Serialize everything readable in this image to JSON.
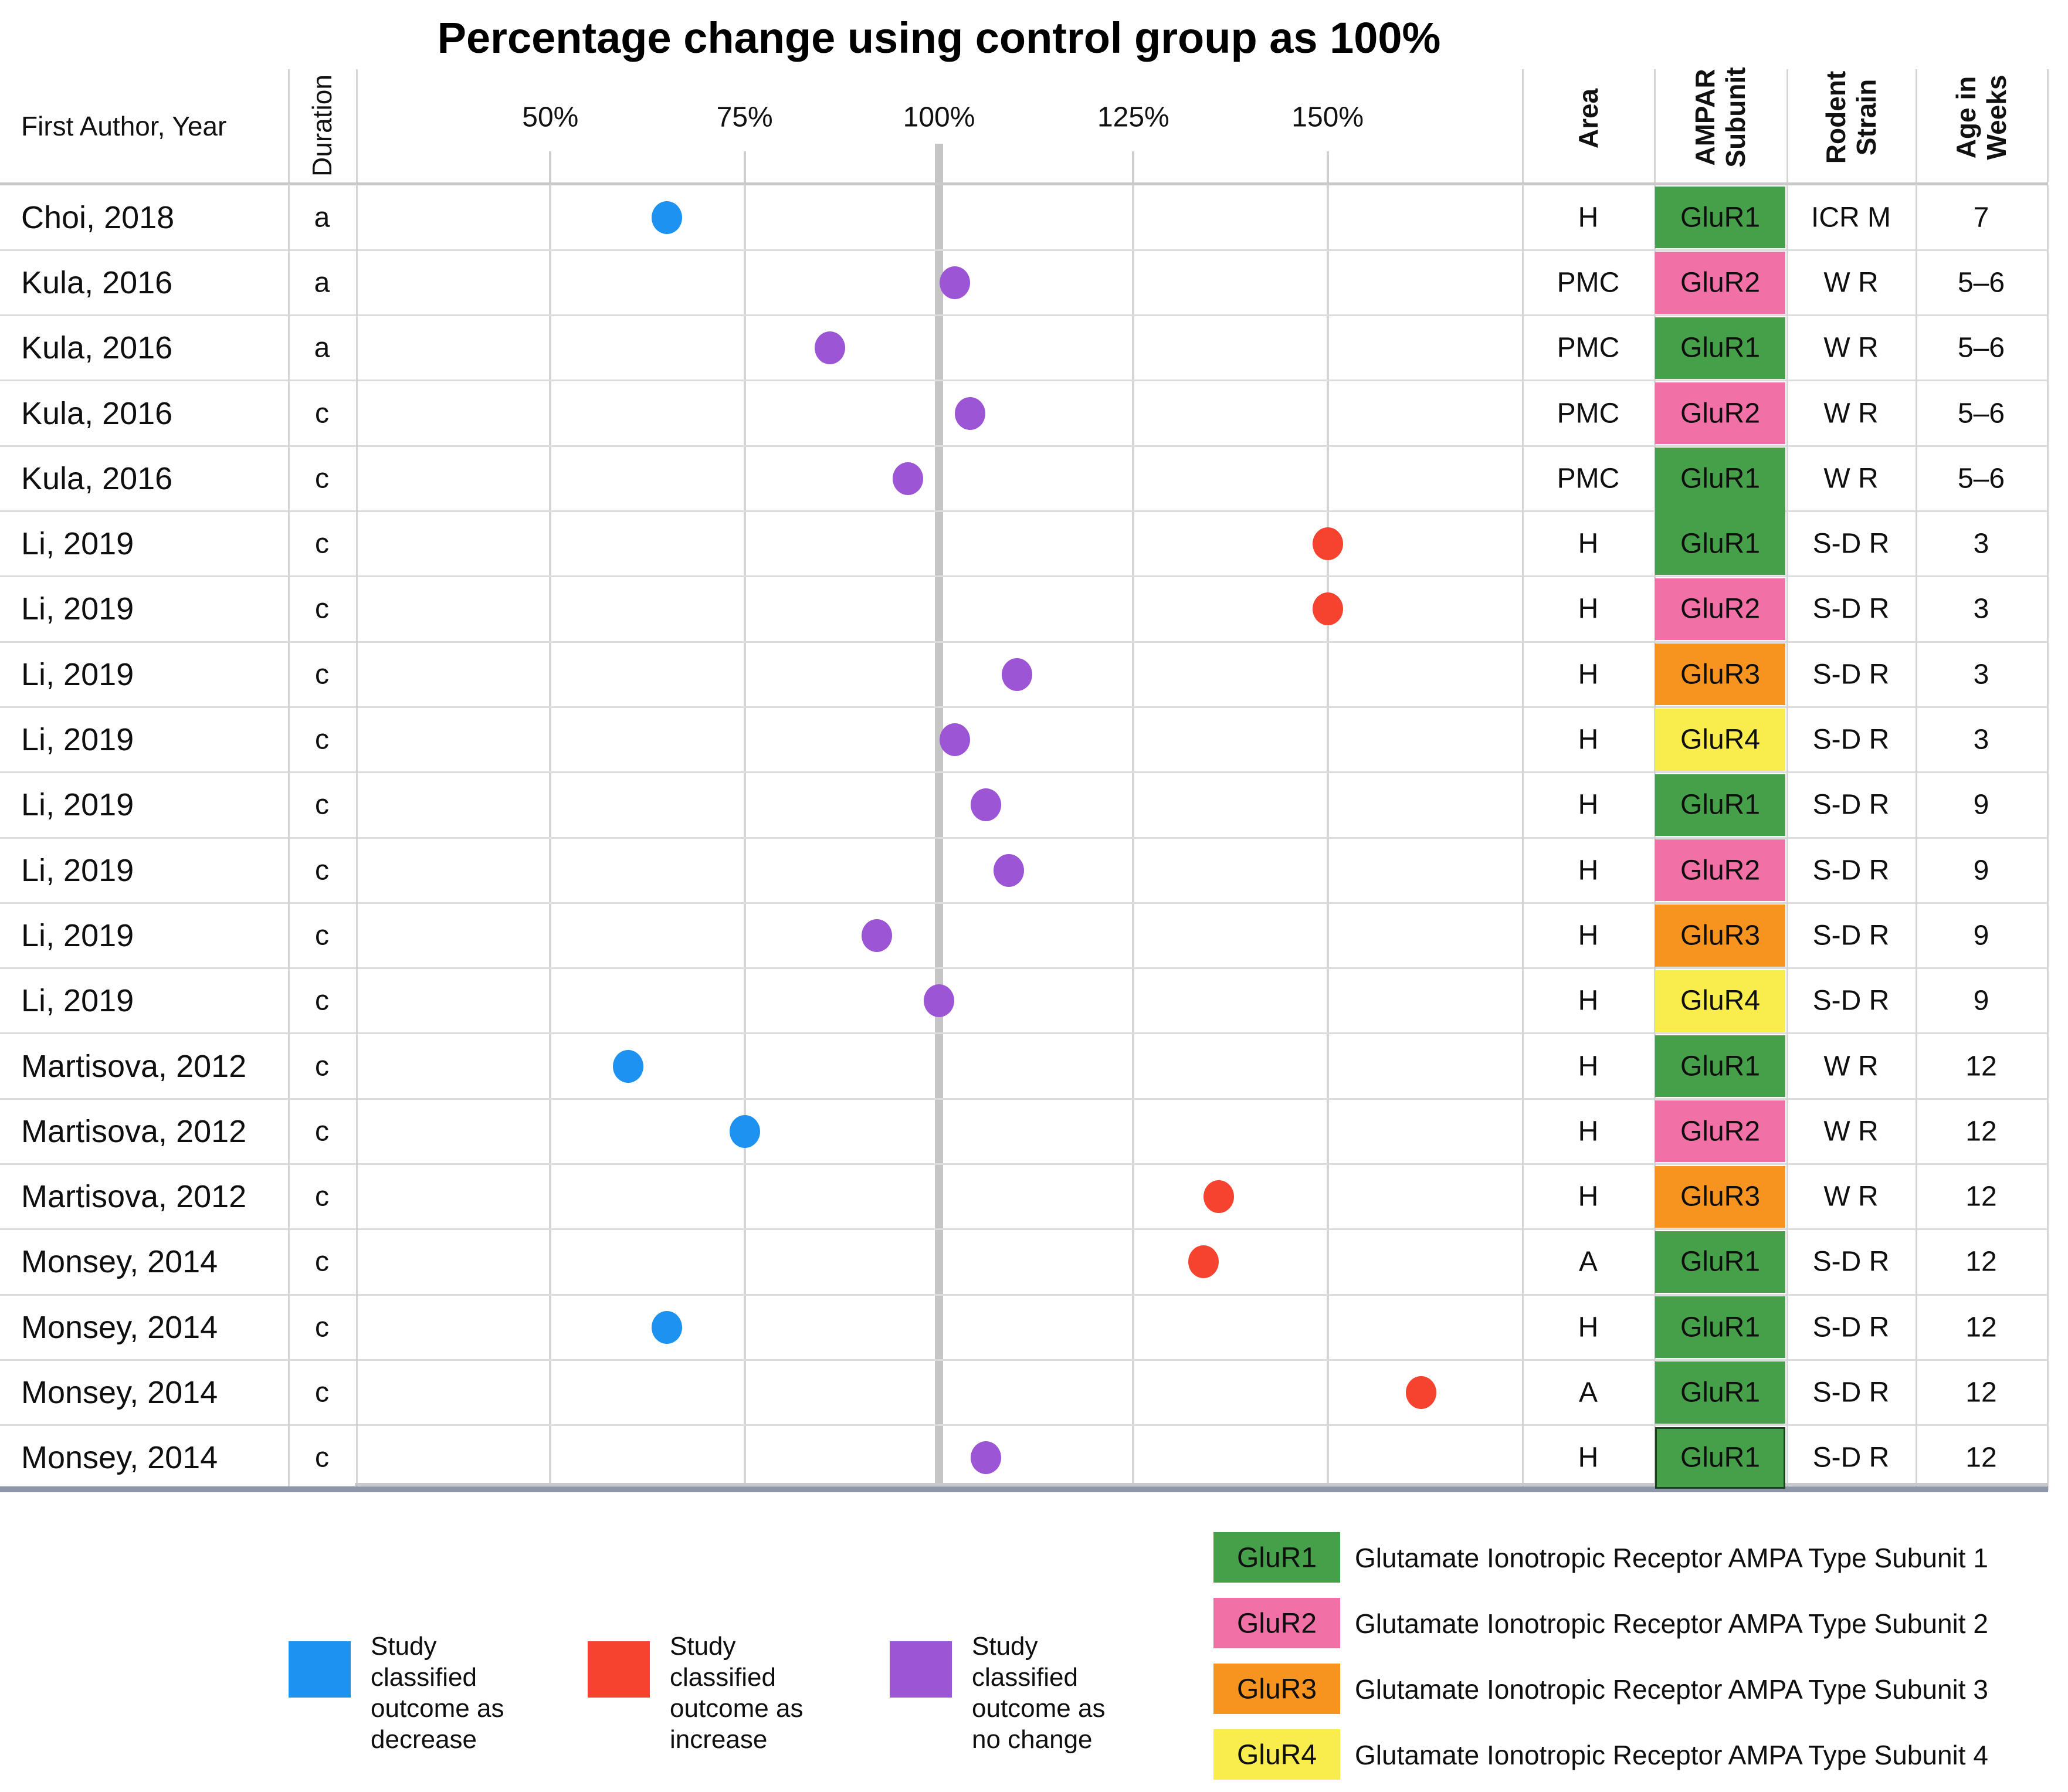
{
  "chart_data": {
    "type": "scatter",
    "title": "Percentage change using control group as 100%",
    "columns": {
      "first_author_year": "First Author, Year",
      "duration": "Duration",
      "area": "Area",
      "ampar_subunit": "AMPAR\nSubunit",
      "rodent_strain": "Rodent\nStrain",
      "age_in_weeks": "Age in\nWeeks"
    },
    "x_axis": {
      "tick_labels": [
        "50%",
        "75%",
        "100%",
        "125%",
        "150%"
      ],
      "tick_values": [
        50,
        75,
        100,
        125,
        150
      ],
      "range": [
        25,
        175
      ],
      "baseline": 100,
      "tick_format": "percent",
      "grid": true
    },
    "rows": [
      {
        "author": "Choi, 2018",
        "duration": "a",
        "value": 65,
        "outcome": "decrease",
        "area": "H",
        "subunit": "GluR1",
        "strain": "ICR M",
        "age": "7"
      },
      {
        "author": "Kula, 2016",
        "duration": "a",
        "value": 102,
        "outcome": "no_change",
        "area": "PMC",
        "subunit": "GluR2",
        "strain": "W R",
        "age": "5–6"
      },
      {
        "author": "Kula, 2016",
        "duration": "a",
        "value": 86,
        "outcome": "no_change",
        "area": "PMC",
        "subunit": "GluR1",
        "strain": "W R",
        "age": "5–6"
      },
      {
        "author": "Kula, 2016",
        "duration": "c",
        "value": 104,
        "outcome": "no_change",
        "area": "PMC",
        "subunit": "GluR2",
        "strain": "W R",
        "age": "5–6"
      },
      {
        "author": "Kula, 2016",
        "duration": "c",
        "value": 96,
        "outcome": "no_change",
        "area": "PMC",
        "subunit": "GluR1",
        "strain": "W R",
        "age": "5–6",
        "subunit_merge_down": true
      },
      {
        "author": "Li, 2019",
        "duration": "c",
        "value": 150,
        "outcome": "increase",
        "area": "H",
        "subunit": "GluR1",
        "strain": "S-D R",
        "age": "3",
        "subunit_merged_up": true
      },
      {
        "author": "Li, 2019",
        "duration": "c",
        "value": 150,
        "outcome": "increase",
        "area": "H",
        "subunit": "GluR2",
        "strain": "S-D R",
        "age": "3"
      },
      {
        "author": "Li, 2019",
        "duration": "c",
        "value": 110,
        "outcome": "no_change",
        "area": "H",
        "subunit": "GluR3",
        "strain": "S-D R",
        "age": "3"
      },
      {
        "author": "Li, 2019",
        "duration": "c",
        "value": 102,
        "outcome": "no_change",
        "area": "H",
        "subunit": "GluR4",
        "strain": "S-D R",
        "age": "3"
      },
      {
        "author": "Li, 2019",
        "duration": "c",
        "value": 106,
        "outcome": "no_change",
        "area": "H",
        "subunit": "GluR1",
        "strain": "S-D R",
        "age": "9"
      },
      {
        "author": "Li, 2019",
        "duration": "c",
        "value": 109,
        "outcome": "no_change",
        "area": "H",
        "subunit": "GluR2",
        "strain": "S-D R",
        "age": "9"
      },
      {
        "author": "Li, 2019",
        "duration": "c",
        "value": 92,
        "outcome": "no_change",
        "area": "H",
        "subunit": "GluR3",
        "strain": "S-D R",
        "age": "9"
      },
      {
        "author": "Li, 2019",
        "duration": "c",
        "value": 100,
        "outcome": "no_change",
        "area": "H",
        "subunit": "GluR4",
        "strain": "S-D R",
        "age": "9"
      },
      {
        "author": "Martisova, 2012",
        "duration": "c",
        "value": 60,
        "outcome": "decrease",
        "area": "H",
        "subunit": "GluR1",
        "strain": "W R",
        "age": "12"
      },
      {
        "author": "Martisova, 2012",
        "duration": "c",
        "value": 75,
        "outcome": "decrease",
        "area": "H",
        "subunit": "GluR2",
        "strain": "W R",
        "age": "12"
      },
      {
        "author": "Martisova, 2012",
        "duration": "c",
        "value": 136,
        "outcome": "increase",
        "area": "H",
        "subunit": "GluR3",
        "strain": "W R",
        "age": "12"
      },
      {
        "author": "Monsey, 2014",
        "duration": "c",
        "value": 134,
        "outcome": "increase",
        "area": "A",
        "subunit": "GluR1",
        "strain": "S-D R",
        "age": "12"
      },
      {
        "author": "Monsey, 2014",
        "duration": "c",
        "value": 65,
        "outcome": "decrease",
        "area": "H",
        "subunit": "GluR1",
        "strain": "S-D R",
        "age": "12"
      },
      {
        "author": "Monsey, 2014",
        "duration": "c",
        "value": 162,
        "outcome": "increase",
        "area": "A",
        "subunit": "GluR1",
        "strain": "S-D R",
        "age": "12"
      },
      {
        "author": "Monsey, 2014",
        "duration": "c",
        "value": 106,
        "outcome": "no_change",
        "area": "H",
        "subunit": "GluR1",
        "strain": "S-D R",
        "age": "12",
        "subunit_outlined": true
      }
    ],
    "outcome_legend": [
      {
        "outcome": "decrease",
        "color": "#1D92F0",
        "label": "Study\nclassified\noutcome as\ndecrease"
      },
      {
        "outcome": "increase",
        "color": "#F5432F",
        "label": "Study\nclassified\noutcome as\nincrease"
      },
      {
        "outcome": "no_change",
        "color": "#9C55D4",
        "label": "Study\nclassified\noutcome as\nno change"
      }
    ],
    "subunit_legend": [
      {
        "subunit": "GluR1",
        "color": "#46A049",
        "label": "Glutamate Ionotropic Receptor AMPA Type Subunit 1"
      },
      {
        "subunit": "GluR2",
        "color": "#F170A6",
        "label": "Glutamate Ionotropic Receptor AMPA Type Subunit 2"
      },
      {
        "subunit": "GluR3",
        "color": "#F7941F",
        "label": "Glutamate Ionotropic Receptor AMPA Type Subunit 3"
      },
      {
        "subunit": "GluR4",
        "color": "#F9EC4D",
        "label": "Glutamate Ionotropic Receptor AMPA Type Subunit 4"
      }
    ]
  }
}
